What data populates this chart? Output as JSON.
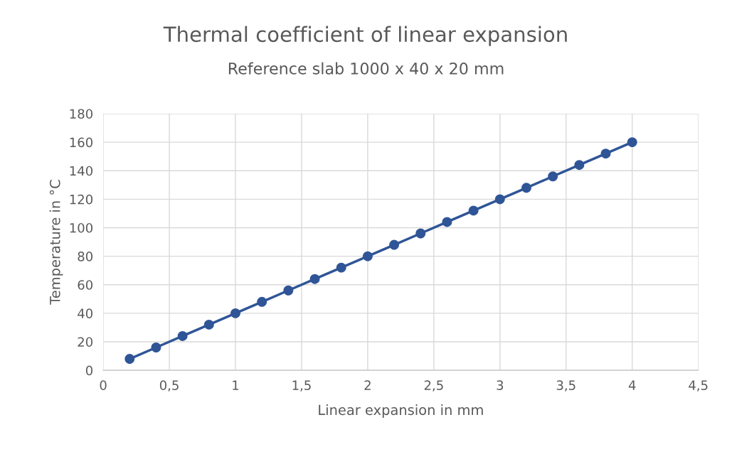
{
  "chart_data": {
    "type": "line",
    "title": "Thermal coefficient of linear expansion",
    "subtitle": "Reference slab 1000 x 40 x 20 mm",
    "xlabel": "Linear expansion in mm",
    "ylabel": "Temperature in °C",
    "x": [
      0.2,
      0.4,
      0.6,
      0.8,
      1,
      1.2,
      1.4,
      1.6,
      1.8,
      2,
      2.2,
      2.4,
      2.6,
      2.8,
      3,
      3.2,
      3.4,
      3.6,
      3.8,
      4
    ],
    "series": [
      {
        "color": "#2f5597",
        "values": [
          8,
          16,
          24,
          32,
          40,
          48,
          56,
          64,
          72,
          80,
          88,
          96,
          104,
          112,
          120,
          128,
          136,
          144,
          152,
          160
        ]
      }
    ],
    "xlim": [
      0,
      4.5
    ],
    "xticks": [
      0,
      {
        "value": 0.5,
        "label": "0,5"
      },
      1,
      {
        "value": 1.5,
        "label": "1,5"
      },
      2,
      {
        "value": 2.5,
        "label": "2,5"
      },
      3,
      {
        "value": 3.5,
        "label": "3,5"
      },
      4,
      {
        "value": 4.5,
        "label": "4,5"
      }
    ],
    "ylim": [
      0,
      180
    ],
    "yticks": [
      0,
      20,
      40,
      60,
      80,
      100,
      120,
      140,
      160,
      180
    ],
    "grid": true,
    "marker": "circle",
    "line_style": "solid"
  }
}
